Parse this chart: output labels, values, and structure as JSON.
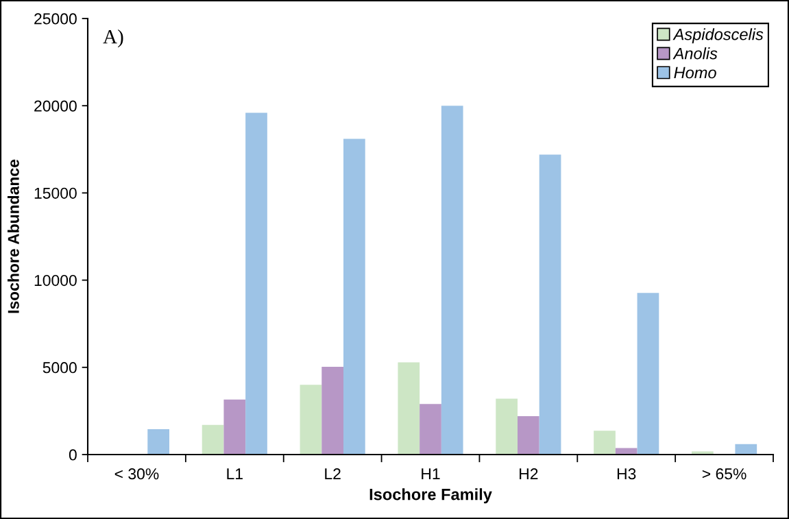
{
  "chart_data": {
    "type": "bar",
    "categories": [
      "< 30%",
      "L1",
      "L2",
      "H1",
      "H2",
      "H3",
      "> 65%"
    ],
    "series": [
      {
        "name": "Aspidoscelis",
        "color": "#cde6c5",
        "values": [
          null,
          1700,
          4000,
          5290,
          3200,
          1370,
          180
        ]
      },
      {
        "name": "Anolis",
        "color": "#b797c6",
        "values": [
          null,
          3150,
          5030,
          2900,
          2200,
          370,
          null
        ]
      },
      {
        "name": "Homo",
        "color": "#9dc3e6",
        "values": [
          1450,
          19600,
          18100,
          20000,
          17200,
          9270,
          600
        ]
      }
    ],
    "xlabel": "Isochore Family",
    "ylabel": "Isochore Abundance",
    "ylim": [
      0,
      25000
    ],
    "yticks": [
      0,
      5000,
      10000,
      15000,
      20000,
      25000
    ],
    "annotations": [
      "A)"
    ],
    "legend": "top right",
    "grid": false
  }
}
